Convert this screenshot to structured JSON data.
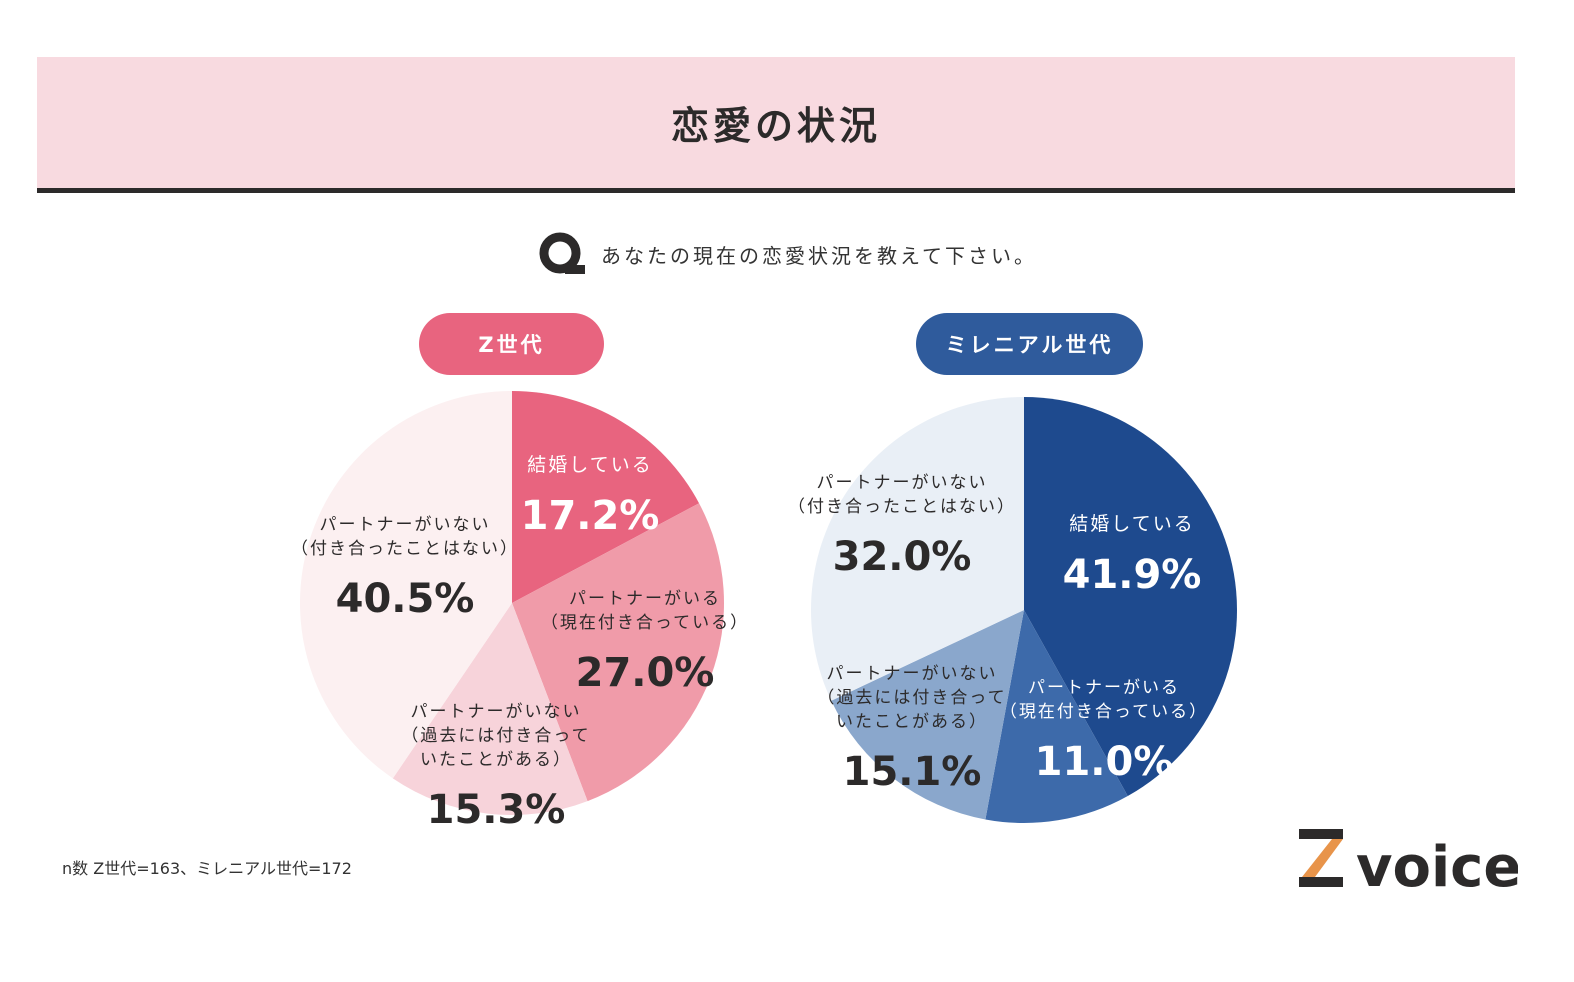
{
  "header": {
    "title": "恋愛の状況"
  },
  "question": {
    "text": "あなたの現在の恋愛状況を教えて下さい。"
  },
  "footnote": "n数 Z世代=163、ミレニアル世代=172",
  "brand": {
    "name": "voice",
    "mark": "Z"
  },
  "colors": {
    "z_accent": "#e8647f",
    "m_accent": "#2f5b9c",
    "ink": "#2c2a2a",
    "banner_bg": "#f8dae0"
  },
  "chart_data": [
    {
      "type": "pie",
      "title": "Z世代",
      "slices": [
        {
          "label": "結婚している",
          "value": 17.2,
          "value_text": "17.2%",
          "color": "#e8647f",
          "text_color": "#ffffff"
        },
        {
          "label": "パートナーがいる\n（現在付き合っている）",
          "value": 27.0,
          "value_text": "27.0%",
          "color": "#f09ba9",
          "text_color": "#2c2a2a"
        },
        {
          "label": "パートナーがいない\n（過去には付き合って\nいたことがある）",
          "value": 15.3,
          "value_text": "15.3%",
          "color": "#f7d3da",
          "text_color": "#2c2a2a"
        },
        {
          "label": "パートナーがいない\n（付き合ったことはない）",
          "value": 40.5,
          "value_text": "40.5%",
          "color": "#fcf0f1",
          "text_color": "#2c2a2a"
        }
      ]
    },
    {
      "type": "pie",
      "title": "ミレニアル世代",
      "slices": [
        {
          "label": "結婚している",
          "value": 41.9,
          "value_text": "41.9%",
          "color": "#1e4a8e",
          "text_color": "#ffffff"
        },
        {
          "label": "パートナーがいる\n（現在付き合っている）",
          "value": 11.0,
          "value_text": "11.0%",
          "color": "#3d6aaa",
          "text_color": "#ffffff"
        },
        {
          "label": "パートナーがいない\n（過去には付き合って\nいたことがある）",
          "value": 15.1,
          "value_text": "15.1%",
          "color": "#8aa7cc",
          "text_color": "#2c2a2a"
        },
        {
          "label": "パートナーがいない\n（付き合ったことはない）",
          "value": 32.0,
          "value_text": "32.0%",
          "color": "#e9eff6",
          "text_color": "#2c2a2a"
        }
      ]
    }
  ]
}
